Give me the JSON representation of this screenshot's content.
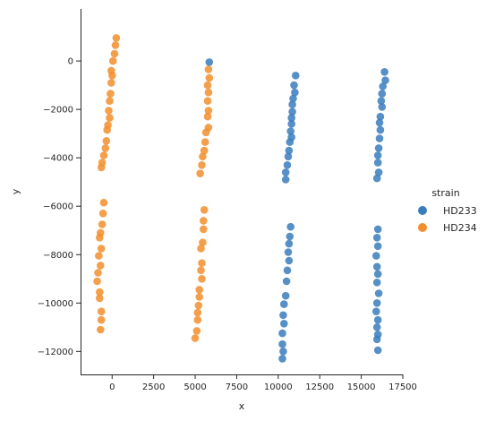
{
  "chart_data": {
    "type": "scatter",
    "xlabel": "x",
    "ylabel": "y",
    "xlim": [
      -1900,
      17500
    ],
    "ylim": [
      -12950,
      2150
    ],
    "xticks": [
      0,
      2500,
      5000,
      7500,
      10000,
      12500,
      15000,
      17500
    ],
    "xtick_labels": [
      "0",
      "2500",
      "5000",
      "7500",
      "10000",
      "12500",
      "15000",
      "17500"
    ],
    "yticks": [
      0,
      -2000,
      -4000,
      -6000,
      -8000,
      -10000,
      -12000
    ],
    "ytick_labels": [
      "0",
      "−2000",
      "−4000",
      "−6000",
      "−8000",
      "−10000",
      "−12000"
    ],
    "grid": false,
    "legend": {
      "title": "strain",
      "placement": "right"
    },
    "series": [
      {
        "name": "HD233",
        "color": "#3a7dbc",
        "points": [
          [
            5850,
            -50
          ],
          [
            11050,
            -600
          ],
          [
            10950,
            -1000
          ],
          [
            11000,
            -1300
          ],
          [
            10900,
            -1550
          ],
          [
            10850,
            -1800
          ],
          [
            10850,
            -2100
          ],
          [
            10800,
            -2350
          ],
          [
            10800,
            -2600
          ],
          [
            10750,
            -2900
          ],
          [
            10800,
            -3150
          ],
          [
            10700,
            -3350
          ],
          [
            10650,
            -3700
          ],
          [
            10600,
            -3950
          ],
          [
            10550,
            -4300
          ],
          [
            10450,
            -4600
          ],
          [
            10450,
            -4900
          ],
          [
            16400,
            -450
          ],
          [
            16450,
            -800
          ],
          [
            16300,
            -1050
          ],
          [
            16250,
            -1350
          ],
          [
            16200,
            -1650
          ],
          [
            16250,
            -1900
          ],
          [
            16150,
            -2300
          ],
          [
            16100,
            -2550
          ],
          [
            16150,
            -2850
          ],
          [
            16100,
            -3200
          ],
          [
            16050,
            -3600
          ],
          [
            16000,
            -3900
          ],
          [
            16000,
            -4200
          ],
          [
            16050,
            -4600
          ],
          [
            15950,
            -4850
          ],
          [
            10750,
            -6850
          ],
          [
            10700,
            -7250
          ],
          [
            10650,
            -7550
          ],
          [
            10600,
            -7900
          ],
          [
            10650,
            -8250
          ],
          [
            10550,
            -8650
          ],
          [
            10500,
            -9100
          ],
          [
            10450,
            -9700
          ],
          [
            10350,
            -10050
          ],
          [
            10300,
            -10500
          ],
          [
            10350,
            -10850
          ],
          [
            10250,
            -11250
          ],
          [
            10250,
            -11700
          ],
          [
            10300,
            -12000
          ],
          [
            10250,
            -12300
          ],
          [
            16000,
            -6950
          ],
          [
            15950,
            -7300
          ],
          [
            16000,
            -7650
          ],
          [
            15900,
            -8050
          ],
          [
            15950,
            -8500
          ],
          [
            16000,
            -8800
          ],
          [
            15950,
            -9150
          ],
          [
            16050,
            -9600
          ],
          [
            15950,
            -10000
          ],
          [
            15900,
            -10350
          ],
          [
            16000,
            -10700
          ],
          [
            15950,
            -11000
          ],
          [
            16000,
            -11300
          ],
          [
            15950,
            -11500
          ],
          [
            16000,
            -11950
          ]
        ]
      },
      {
        "name": "HD234",
        "color": "#f28e2b",
        "points": [
          [
            250,
            950
          ],
          [
            200,
            650
          ],
          [
            150,
            300
          ],
          [
            50,
            0
          ],
          [
            -50,
            -400
          ],
          [
            0,
            -600
          ],
          [
            -50,
            -900
          ],
          [
            -100,
            -1350
          ],
          [
            -150,
            -1650
          ],
          [
            -200,
            -2050
          ],
          [
            -150,
            -2350
          ],
          [
            -250,
            -2650
          ],
          [
            -300,
            -2850
          ],
          [
            -350,
            -3300
          ],
          [
            -400,
            -3600
          ],
          [
            -500,
            -3900
          ],
          [
            -600,
            -4200
          ],
          [
            -650,
            -4400
          ],
          [
            5800,
            -350
          ],
          [
            5850,
            -700
          ],
          [
            5750,
            -1000
          ],
          [
            5800,
            -1300
          ],
          [
            5750,
            -1650
          ],
          [
            5800,
            -2050
          ],
          [
            5750,
            -2300
          ],
          [
            5800,
            -2750
          ],
          [
            5650,
            -2950
          ],
          [
            5600,
            -3350
          ],
          [
            5550,
            -3700
          ],
          [
            5450,
            -3950
          ],
          [
            5400,
            -4300
          ],
          [
            5300,
            -4650
          ],
          [
            -500,
            -5850
          ],
          [
            -550,
            -6300
          ],
          [
            -600,
            -6750
          ],
          [
            -700,
            -7100
          ],
          [
            -750,
            -7300
          ],
          [
            -650,
            -7750
          ],
          [
            -800,
            -8050
          ],
          [
            -700,
            -8450
          ],
          [
            -850,
            -8750
          ],
          [
            -900,
            -9100
          ],
          [
            -750,
            -9550
          ],
          [
            -750,
            -9800
          ],
          [
            -650,
            -10350
          ],
          [
            -650,
            -10700
          ],
          [
            -700,
            -11100
          ],
          [
            5550,
            -6150
          ],
          [
            5500,
            -6600
          ],
          [
            5500,
            -6950
          ],
          [
            5450,
            -7500
          ],
          [
            5350,
            -7750
          ],
          [
            5400,
            -8350
          ],
          [
            5350,
            -8650
          ],
          [
            5400,
            -9000
          ],
          [
            5250,
            -9450
          ],
          [
            5250,
            -9750
          ],
          [
            5200,
            -10100
          ],
          [
            5150,
            -10400
          ],
          [
            5150,
            -10700
          ],
          [
            5100,
            -11150
          ],
          [
            5000,
            -11450
          ]
        ]
      }
    ]
  }
}
